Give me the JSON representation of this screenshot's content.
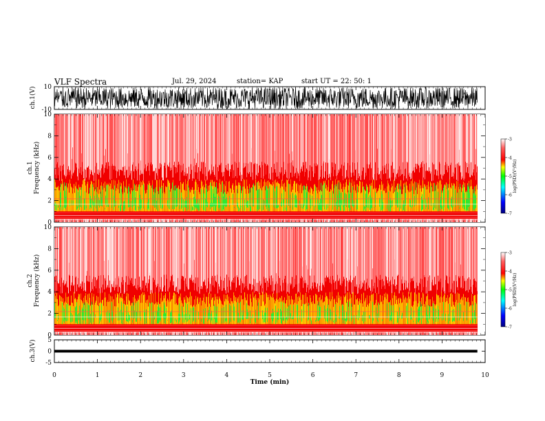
{
  "header": {
    "title": "VLF Spectra",
    "date": "Jul. 29, 2024",
    "station": "station= KAP",
    "start": "start  UT  =   22: 50: 1"
  },
  "chart_data": [
    {
      "type": "line",
      "title": "",
      "ylabel": "ch.1(V)",
      "ylim": [
        -10,
        10
      ],
      "yticks": [
        "10",
        "-10"
      ],
      "series": [
        {
          "values_description_free": true
        }
      ]
    },
    {
      "type": "heatmap",
      "ylabel_top": "ch.1",
      "ylabel": "Frequency (kHz)",
      "ylim": [
        0,
        10
      ],
      "yticks": [
        "0",
        "2",
        "4",
        "6",
        "8",
        "10"
      ],
      "colorbar": {
        "label": "log(PSD)(V²/Hz)",
        "range": [
          -7,
          -3
        ],
        "ticks": [
          "-3",
          "-4",
          "-5",
          "-6",
          "-7"
        ]
      }
    },
    {
      "type": "heatmap",
      "ylabel_top": "ch.2",
      "ylabel": "Frequency (kHz)",
      "ylim": [
        0,
        10
      ],
      "yticks": [
        "0",
        "2",
        "4",
        "6",
        "8",
        "10"
      ],
      "colorbar": {
        "label": "log(PSD)(V²/Hz)",
        "range": [
          -7,
          -3
        ],
        "ticks": [
          "-3",
          "-4",
          "-5",
          "-6",
          "-7"
        ]
      }
    },
    {
      "type": "line",
      "ylabel": "ch.3(V)",
      "ylim": [
        -5,
        5
      ],
      "yticks": [
        "5",
        "0",
        "-5"
      ]
    }
  ],
  "xaxis": {
    "label": "Time (min)",
    "range": [
      0,
      10
    ],
    "ticks": [
      "0",
      "1",
      "2",
      "3",
      "4",
      "5",
      "6",
      "7",
      "8",
      "9",
      "10"
    ],
    "data_end": 9.82
  },
  "colors": {
    "cmap": [
      "#00007f",
      "#0000ff",
      "#00c8ff",
      "#00ff00",
      "#ffff00",
      "#ff0000",
      "#ffffff"
    ]
  }
}
